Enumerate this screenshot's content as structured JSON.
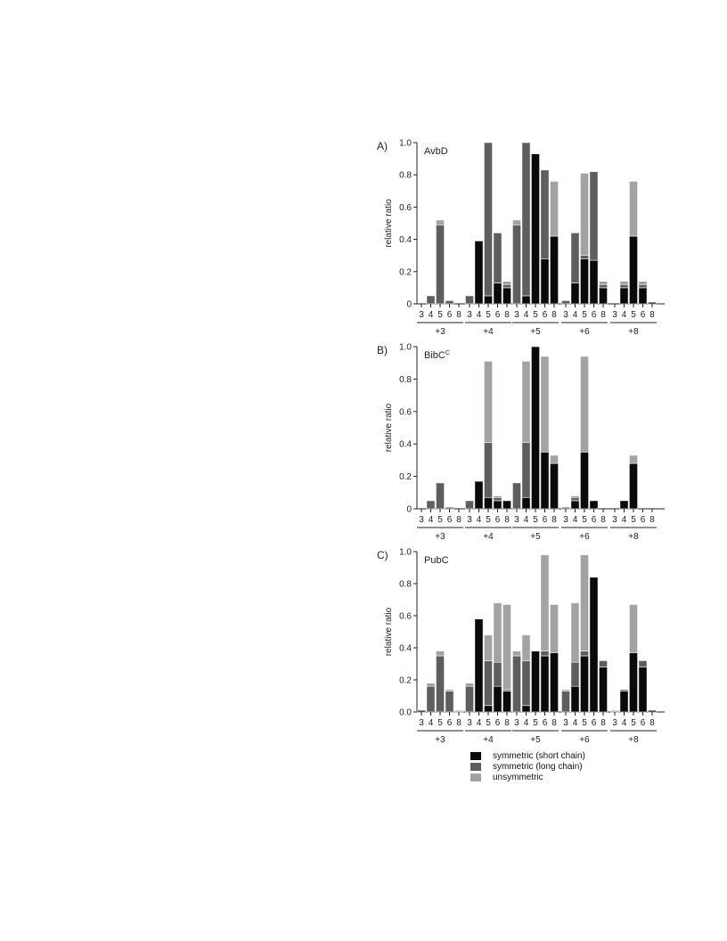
{
  "colors": {
    "short": "#0a0a0a",
    "long": "#5e5e5e",
    "unsym": "#a3a3a3"
  },
  "legend": [
    {
      "key": "short",
      "label": "symmetric (short chain)"
    },
    {
      "key": "long",
      "label": "symmetric (long chain)"
    },
    {
      "key": "unsym",
      "label": "unsymmetric"
    }
  ],
  "chart_data": [
    {
      "type": "bar",
      "stacked": true,
      "panel_label": "A)",
      "title": "AvbD",
      "ylabel": "relative ratio",
      "ylim": [
        0,
        1.0
      ],
      "yticks": [
        "0",
        "0.2",
        "0.4",
        "0.6",
        "0.8",
        "1.0"
      ],
      "groups": [
        "+3",
        "+4",
        "+5",
        "+6",
        "+8"
      ],
      "categories": [
        "3",
        "4",
        "5",
        "6",
        "8"
      ],
      "series": [
        {
          "key": "short",
          "name": "symmetric (short chain)",
          "values": [
            [
              0,
              0,
              0,
              0,
              0
            ],
            [
              0,
              0.39,
              0.05,
              0.13,
              0.1
            ],
            [
              0,
              0.05,
              0.93,
              0.28,
              0.42
            ],
            [
              0,
              0.13,
              0.28,
              0.27,
              0.1
            ],
            [
              0,
              0.1,
              0.42,
              0.1,
              0.01
            ]
          ]
        },
        {
          "key": "long",
          "name": "symmetric (long chain)",
          "values": [
            [
              0,
              0.05,
              0.49,
              0.02,
              0
            ],
            [
              0.05,
              0,
              0.95,
              0.31,
              0.02
            ],
            [
              0.49,
              0.95,
              0,
              0.55,
              0
            ],
            [
              0.02,
              0.31,
              0.02,
              0.55,
              0.02
            ],
            [
              0,
              0.02,
              0,
              0.02,
              0
            ]
          ]
        },
        {
          "key": "unsym",
          "name": "unsymmetric",
          "values": [
            [
              0,
              0,
              0.03,
              0,
              0
            ],
            [
              0,
              0,
              0,
              0,
              0.02
            ],
            [
              0.03,
              0,
              0,
              0,
              0.34
            ],
            [
              0,
              0,
              0.51,
              0,
              0.02
            ],
            [
              0,
              0.02,
              0.34,
              0.02,
              0
            ]
          ]
        }
      ]
    },
    {
      "type": "bar",
      "stacked": true,
      "panel_label": "B)",
      "title": "BibC",
      "title_superscript": "C",
      "ylabel": "relative ratio",
      "ylim": [
        0,
        1.0
      ],
      "yticks": [
        "0",
        "0.2",
        "0.4",
        "0.6",
        "0.8",
        "1.0"
      ],
      "groups": [
        "+3",
        "+4",
        "+5",
        "+6",
        "+8"
      ],
      "categories": [
        "3",
        "4",
        "5",
        "6",
        "8"
      ],
      "series": [
        {
          "key": "short",
          "name": "symmetric (short chain)",
          "values": [
            [
              0,
              0,
              0,
              0,
              0
            ],
            [
              0,
              0.17,
              0.07,
              0.05,
              0.05
            ],
            [
              0,
              0.07,
              1.0,
              0.35,
              0.28
            ],
            [
              0,
              0.05,
              0.35,
              0.05,
              0
            ],
            [
              0,
              0.05,
              0.28,
              0,
              0
            ]
          ]
        },
        {
          "key": "long",
          "name": "symmetric (long chain)",
          "values": [
            [
              0,
              0.05,
              0.16,
              0.01,
              0
            ],
            [
              0.05,
              0,
              0.34,
              0.02,
              0
            ],
            [
              0.16,
              0.34,
              0,
              0,
              0
            ],
            [
              0.01,
              0.02,
              0,
              0,
              0
            ],
            [
              0,
              0,
              0,
              0,
              0
            ]
          ]
        },
        {
          "key": "unsym",
          "name": "unsymmetric",
          "values": [
            [
              0,
              0,
              0,
              0,
              0
            ],
            [
              0,
              0,
              0.5,
              0.01,
              0
            ],
            [
              0,
              0.5,
              0,
              0.59,
              0.05
            ],
            [
              0,
              0.01,
              0.59,
              0,
              0
            ],
            [
              0,
              0,
              0.05,
              0,
              0
            ]
          ]
        }
      ]
    },
    {
      "type": "bar",
      "stacked": true,
      "panel_label": "C)",
      "title": "PubC",
      "ylabel": "relative ratio",
      "ylim": [
        0,
        1.0
      ],
      "yticks": [
        "0.0",
        "0.2",
        "0.4",
        "0.6",
        "0.8",
        "1.0"
      ],
      "groups": [
        "+3",
        "+4",
        "+5",
        "+6",
        "+8"
      ],
      "categories": [
        "3",
        "4",
        "5",
        "6",
        "8"
      ],
      "series": [
        {
          "key": "short",
          "name": "symmetric (short chain)",
          "values": [
            [
              0.01,
              0,
              0,
              0,
              0
            ],
            [
              0,
              0.58,
              0.04,
              0.16,
              0.13
            ],
            [
              0,
              0.04,
              0.38,
              0.35,
              0.37
            ],
            [
              0,
              0.16,
              0.35,
              0.84,
              0.28
            ],
            [
              0,
              0.13,
              0.37,
              0.28,
              0.01
            ]
          ]
        },
        {
          "key": "long",
          "name": "symmetric (long chain)",
          "values": [
            [
              0,
              0.16,
              0.35,
              0.13,
              0
            ],
            [
              0.16,
              0,
              0.28,
              0.15,
              0.01
            ],
            [
              0.35,
              0.28,
              0,
              0.03,
              0
            ],
            [
              0.13,
              0.15,
              0.03,
              0,
              0.04
            ],
            [
              0,
              0.01,
              0,
              0.04,
              0
            ]
          ]
        },
        {
          "key": "unsym",
          "name": "unsymmetric",
          "values": [
            [
              0,
              0.02,
              0.03,
              0.01,
              0.01
            ],
            [
              0.02,
              0,
              0.16,
              0.37,
              0.53
            ],
            [
              0.03,
              0.16,
              0,
              0.6,
              0.3
            ],
            [
              0.01,
              0.37,
              0.6,
              0,
              0
            ],
            [
              0.01,
              0,
              0.3,
              0,
              0
            ]
          ]
        }
      ]
    }
  ]
}
